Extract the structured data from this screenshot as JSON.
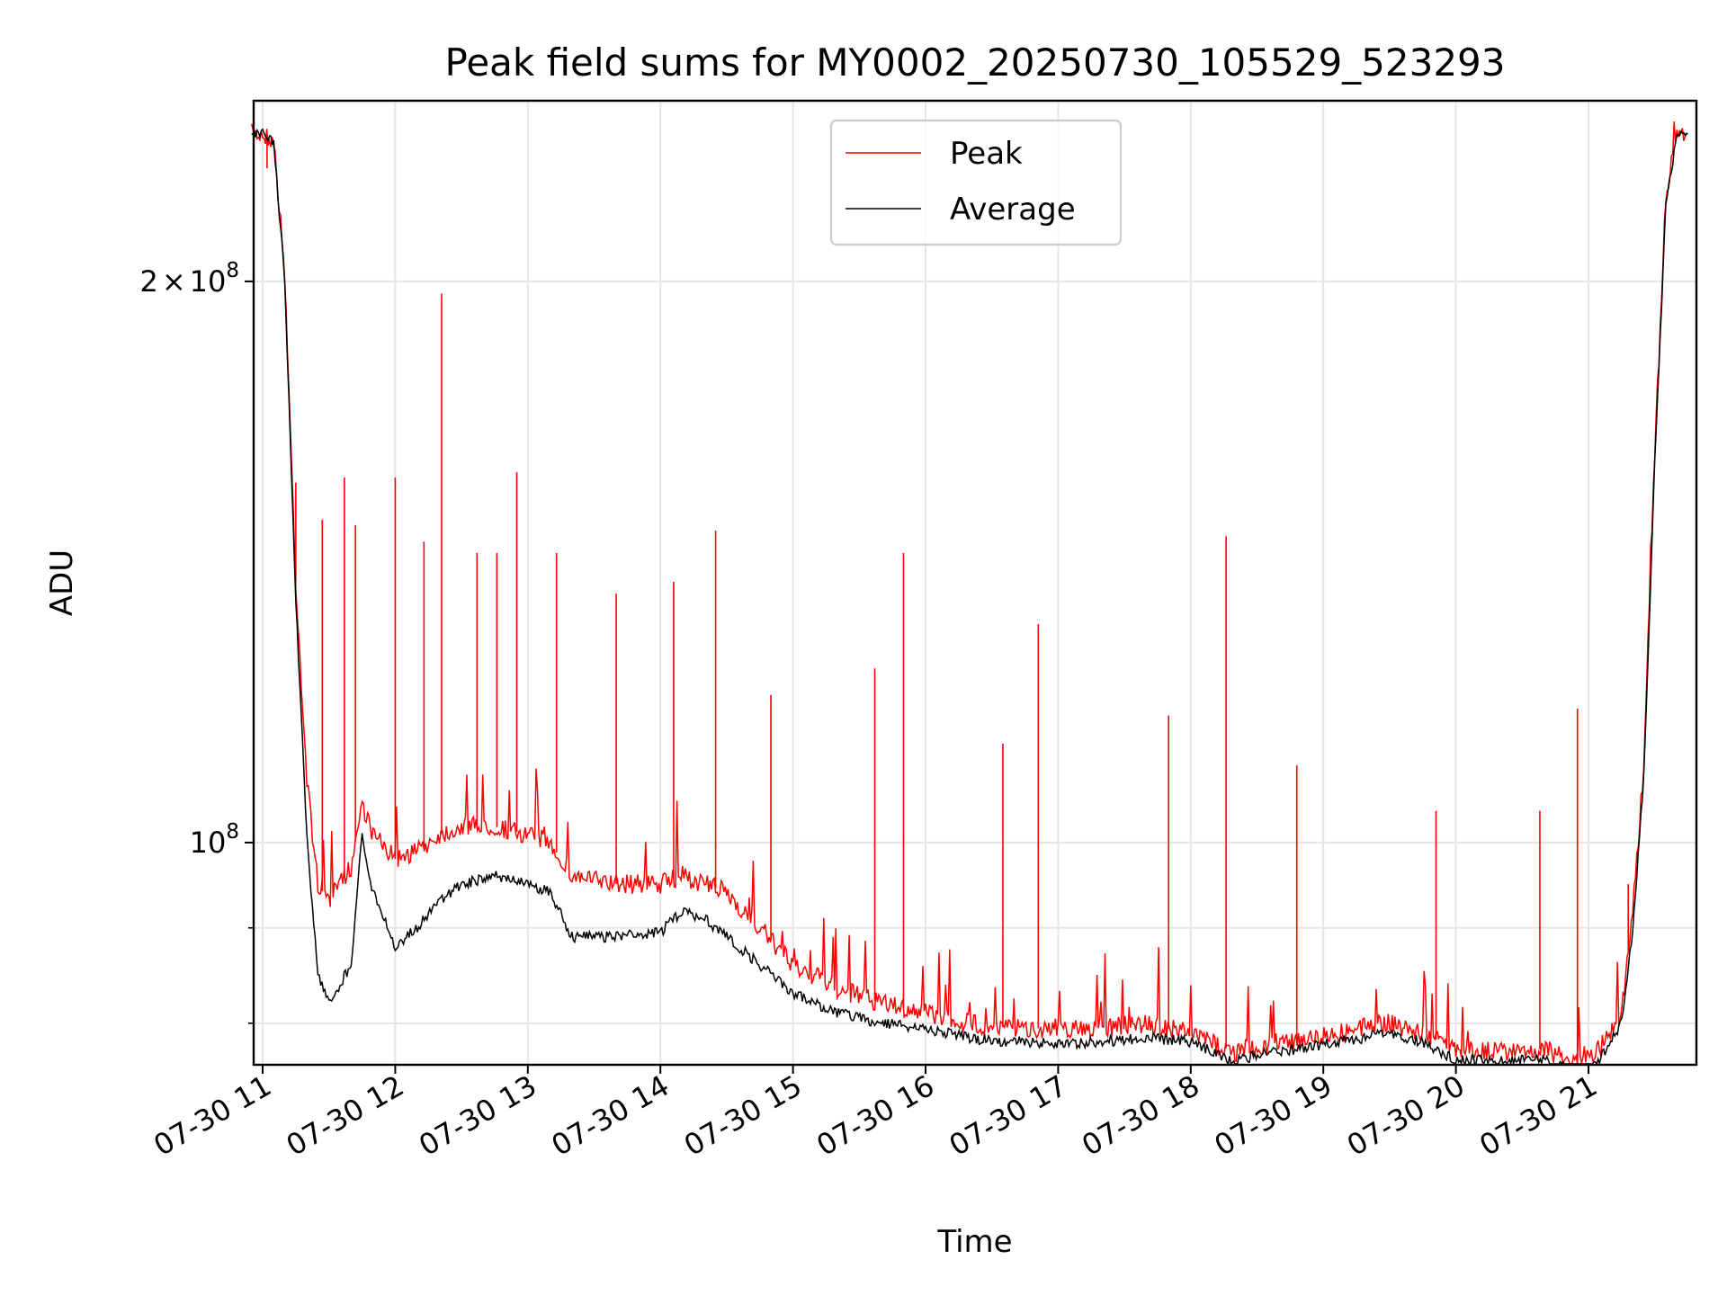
{
  "chart_data": {
    "type": "line",
    "title": "Peak field sums for MY0002_20250730_105529_523293",
    "xlabel": "Time",
    "ylabel": "ADU",
    "yscale": "log",
    "ylim": [
      76000000,
      250000000
    ],
    "grid": true,
    "legend_position": "top-center",
    "x_ticks": [
      "07-30 11",
      "07-30 12",
      "07-30 13",
      "07-30 14",
      "07-30 15",
      "07-30 16",
      "07-30 17",
      "07-30 18",
      "07-30 19",
      "07-30 20",
      "07-30 21"
    ],
    "y_ticks": [
      {
        "value": 200000000,
        "mantissa": "2",
        "label_sep": "×",
        "base": "10",
        "exp": "8"
      },
      {
        "value": 100000000,
        "mantissa": "",
        "label_sep": "",
        "base": "10",
        "exp": "8"
      }
    ],
    "colors": {
      "peak": "#ff0000",
      "average": "#000000"
    },
    "series": [
      {
        "name": "Average",
        "x": [
          "07-30 10:55",
          "07-30 11:00",
          "07-30 11:05",
          "07-30 11:10",
          "07-30 11:15",
          "07-30 11:20",
          "07-30 11:25",
          "07-30 11:30",
          "07-30 11:35",
          "07-30 11:40",
          "07-30 11:45",
          "07-30 11:50",
          "07-30 12:00",
          "07-30 12:10",
          "07-30 12:20",
          "07-30 12:30",
          "07-30 12:45",
          "07-30 13:00",
          "07-30 13:10",
          "07-30 13:20",
          "07-30 13:40",
          "07-30 14:00",
          "07-30 14:10",
          "07-30 14:20",
          "07-30 14:30",
          "07-30 14:45",
          "07-30 15:00",
          "07-30 15:20",
          "07-30 15:40",
          "07-30 16:00",
          "07-30 16:20",
          "07-30 16:40",
          "07-30 17:00",
          "07-30 17:20",
          "07-30 17:40",
          "07-30 18:00",
          "07-30 18:20",
          "07-30 18:35",
          "07-30 18:50",
          "07-30 19:10",
          "07-30 19:30",
          "07-30 19:45",
          "07-30 20:00",
          "07-30 20:20",
          "07-30 20:40",
          "07-30 20:55",
          "07-30 21:05",
          "07-30 21:15",
          "07-30 21:20",
          "07-30 21:25",
          "07-30 21:30",
          "07-30 21:35",
          "07-30 21:40",
          "07-30 21:45"
        ],
        "y": [
          240000000,
          240000000,
          238000000,
          200000000,
          135000000,
          101000000,
          85000000,
          82000000,
          84000000,
          86000000,
          101000000,
          94000000,
          88000000,
          90000000,
          93000000,
          95000000,
          96000000,
          95000000,
          94000000,
          89000000,
          89000000,
          89500000,
          92000000,
          91000000,
          89000000,
          86000000,
          83000000,
          81000000,
          80000000,
          79500000,
          78500000,
          78200000,
          78000000,
          78200000,
          78600000,
          78200000,
          76300000,
          77200000,
          77500000,
          78300000,
          79000000,
          78200000,
          76500000,
          76300000,
          76500000,
          75300000,
          76500000,
          80000000,
          90000000,
          108000000,
          160000000,
          220000000,
          240000000,
          240000000
        ]
      },
      {
        "name": "Peak",
        "x": [
          "07-30 10:55",
          "07-30 11:00",
          "07-30 11:05",
          "07-30 11:10",
          "07-30 11:15",
          "07-30 11:20",
          "07-30 11:25",
          "07-30 11:30",
          "07-30 11:35",
          "07-30 11:40",
          "07-30 11:45",
          "07-30 11:50",
          "07-30 12:00",
          "07-30 12:10",
          "07-30 12:20",
          "07-30 12:30",
          "07-30 12:45",
          "07-30 13:00",
          "07-30 13:10",
          "07-30 13:20",
          "07-30 13:40",
          "07-30 14:00",
          "07-30 14:10",
          "07-30 14:20",
          "07-30 14:30",
          "07-30 14:45",
          "07-30 15:00",
          "07-30 15:20",
          "07-30 15:40",
          "07-30 16:00",
          "07-30 16:20",
          "07-30 16:40",
          "07-30 17:00",
          "07-30 17:20",
          "07-30 17:40",
          "07-30 18:00",
          "07-30 18:20",
          "07-30 18:35",
          "07-30 18:50",
          "07-30 19:10",
          "07-30 19:30",
          "07-30 19:45",
          "07-30 20:00",
          "07-30 20:20",
          "07-30 20:40",
          "07-30 20:55",
          "07-30 21:05",
          "07-30 21:15",
          "07-30 21:20",
          "07-30 21:25",
          "07-30 21:30",
          "07-30 21:35",
          "07-30 21:40",
          "07-30 21:45"
        ],
        "y": [
          240000000,
          240000000,
          238000000,
          202000000,
          138000000,
          108000000,
          95000000,
          93000000,
          95000000,
          97000000,
          105000000,
          101000000,
          98000000,
          99000000,
          101000000,
          102000000,
          102000000,
          101000000,
          100000000,
          96000000,
          95000000,
          95000000,
          96000000,
          95000000,
          94000000,
          90000000,
          86000000,
          83500000,
          82000000,
          81000000,
          80000000,
          79500000,
          79500000,
          79500000,
          80000000,
          79000000,
          77200000,
          78000000,
          78500000,
          79200000,
          80000000,
          79000000,
          77500000,
          77200000,
          77500000,
          76000000,
          77500000,
          81000000,
          92000000,
          110000000,
          162000000,
          222000000,
          240000000,
          240000000
        ],
        "spikes": [
          {
            "x": "07-30 11:02",
            "y": 230000000
          },
          {
            "x": "07-30 11:15",
            "y": 156000000
          },
          {
            "x": "07-30 11:27",
            "y": 149000000
          },
          {
            "x": "07-30 11:37",
            "y": 157000000
          },
          {
            "x": "07-30 11:42",
            "y": 148000000
          },
          {
            "x": "07-30 12:00",
            "y": 157000000
          },
          {
            "x": "07-30 12:13",
            "y": 145000000
          },
          {
            "x": "07-30 12:21",
            "y": 197000000
          },
          {
            "x": "07-30 12:37",
            "y": 143000000
          },
          {
            "x": "07-30 12:46",
            "y": 143000000
          },
          {
            "x": "07-30 12:55",
            "y": 158000000
          },
          {
            "x": "07-30 13:13",
            "y": 143000000
          },
          {
            "x": "07-30 13:40",
            "y": 136000000
          },
          {
            "x": "07-30 14:06",
            "y": 138000000
          },
          {
            "x": "07-30 14:25",
            "y": 147000000
          },
          {
            "x": "07-30 14:50",
            "y": 120000000
          },
          {
            "x": "07-30 15:37",
            "y": 124000000
          },
          {
            "x": "07-30 15:50",
            "y": 143000000
          },
          {
            "x": "07-30 16:35",
            "y": 113000000
          },
          {
            "x": "07-30 16:51",
            "y": 131000000
          },
          {
            "x": "07-30 17:50",
            "y": 117000000
          },
          {
            "x": "07-30 18:16",
            "y": 146000000
          },
          {
            "x": "07-30 18:48",
            "y": 110000000
          },
          {
            "x": "07-30 19:51",
            "y": 104000000
          },
          {
            "x": "07-30 20:38",
            "y": 104000000
          },
          {
            "x": "07-30 20:55",
            "y": 118000000
          },
          {
            "x": "07-30 21:18",
            "y": 95000000
          }
        ]
      }
    ]
  }
}
